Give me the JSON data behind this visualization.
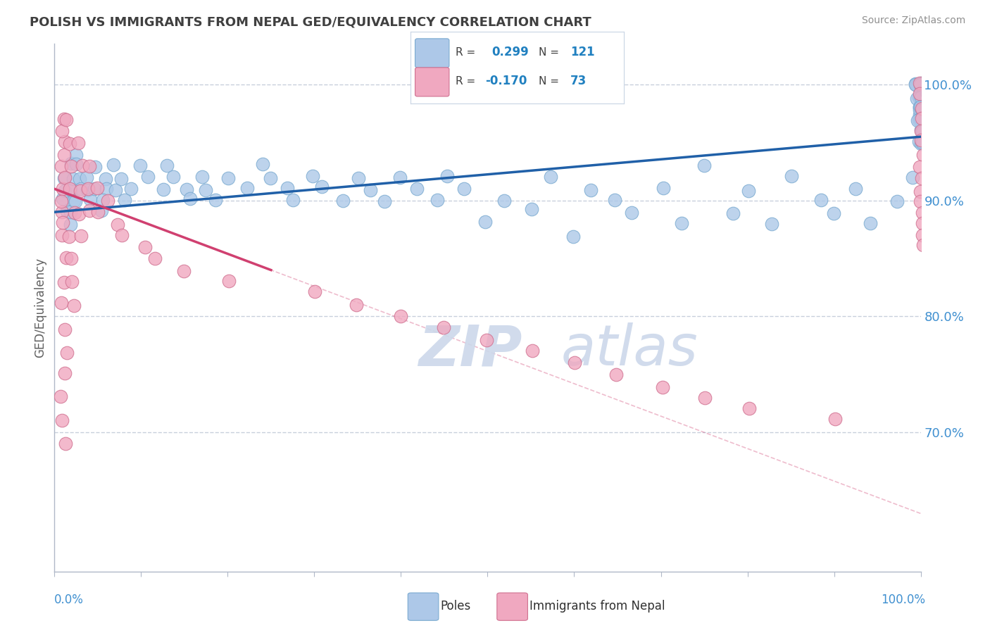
{
  "title": "POLISH VS IMMIGRANTS FROM NEPAL GED/EQUIVALENCY CORRELATION CHART",
  "source_text": "Source: ZipAtlas.com",
  "ylabel": "GED/Equivalency",
  "yticks": [
    70.0,
    80.0,
    90.0,
    100.0
  ],
  "xmin": 0.0,
  "xmax": 100.0,
  "ymin": 58.0,
  "ymax": 103.5,
  "r_blue": 0.299,
  "n_blue": 121,
  "r_pink": -0.17,
  "n_pink": 73,
  "blue_color": "#adc8e8",
  "blue_edge_color": "#7aaad0",
  "blue_line_color": "#2060a8",
  "pink_color": "#f0a8c0",
  "pink_edge_color": "#d07090",
  "pink_line_color": "#d04070",
  "watermark_color": "#ccd8ea",
  "title_color": "#404040",
  "axis_color": "#4090d0",
  "grid_color": "#c8d0dc",
  "legend_r_color": "#2080c0",
  "blue_scatter_x": [
    1,
    1,
    1,
    1,
    2,
    2,
    2,
    2,
    2,
    2,
    2,
    3,
    3,
    3,
    3,
    4,
    4,
    4,
    5,
    5,
    5,
    6,
    6,
    6,
    7,
    7,
    8,
    8,
    9,
    10,
    11,
    12,
    13,
    14,
    15,
    16,
    17,
    18,
    19,
    20,
    22,
    24,
    25,
    27,
    28,
    30,
    31,
    33,
    35,
    37,
    38,
    40,
    42,
    44,
    45,
    47,
    50,
    52,
    55,
    57,
    60,
    62,
    65,
    67,
    70,
    72,
    75,
    78,
    80,
    83,
    85,
    88,
    90,
    92,
    95,
    97,
    99,
    100,
    100,
    100,
    100,
    100,
    100,
    100,
    100,
    100,
    100,
    100,
    100,
    100,
    100,
    100,
    100,
    100,
    100,
    100,
    100,
    100,
    100,
    100,
    100,
    100,
    100,
    100,
    100,
    100,
    100,
    100,
    100,
    100,
    100,
    100,
    100,
    100,
    100,
    100,
    100,
    100,
    100,
    100,
    100
  ],
  "blue_scatter_y": [
    92,
    90,
    91,
    89,
    93,
    91,
    94,
    90,
    88,
    92,
    89,
    92,
    91,
    90,
    93,
    91,
    92,
    90,
    93,
    91,
    89,
    92,
    91,
    90,
    93,
    91,
    92,
    90,
    91,
    93,
    92,
    91,
    93,
    92,
    91,
    90,
    92,
    91,
    90,
    92,
    91,
    93,
    92,
    91,
    90,
    92,
    91,
    90,
    92,
    91,
    90,
    92,
    91,
    90,
    92,
    91,
    88,
    90,
    89,
    92,
    87,
    91,
    90,
    89,
    91,
    88,
    93,
    89,
    91,
    88,
    92,
    90,
    89,
    91,
    88,
    90,
    92,
    100,
    100,
    100,
    100,
    100,
    100,
    99,
    99,
    98,
    98,
    97,
    97,
    96,
    96,
    95,
    95,
    100,
    100,
    100,
    100,
    100,
    100,
    99,
    99,
    98,
    98,
    97,
    97,
    96,
    96,
    95,
    95,
    100,
    100,
    100,
    99,
    99,
    98,
    98,
    97,
    97,
    96,
    96,
    95
  ],
  "pink_scatter_x": [
    1,
    1,
    1,
    1,
    1,
    1,
    1,
    1,
    1,
    1,
    1,
    1,
    1,
    1,
    1,
    1,
    1,
    1,
    1,
    1,
    2,
    2,
    2,
    2,
    2,
    2,
    2,
    2,
    2,
    3,
    3,
    3,
    3,
    3,
    4,
    4,
    4,
    5,
    5,
    6,
    7,
    8,
    10,
    12,
    15,
    20,
    30,
    35,
    40,
    45,
    50,
    55,
    60,
    65,
    70,
    75,
    80,
    90,
    100,
    100,
    100,
    100,
    100,
    100,
    100,
    100,
    100,
    100,
    100,
    100,
    100,
    100,
    100
  ],
  "pink_scatter_y": [
    97,
    95,
    93,
    91,
    89,
    87,
    85,
    83,
    81,
    79,
    77,
    75,
    73,
    71,
    69,
    96,
    94,
    92,
    90,
    88,
    97,
    95,
    93,
    91,
    89,
    87,
    85,
    83,
    81,
    95,
    93,
    91,
    89,
    87,
    93,
    91,
    89,
    91,
    89,
    90,
    88,
    87,
    86,
    85,
    84,
    83,
    82,
    81,
    80,
    79,
    78,
    77,
    76,
    75,
    74,
    73,
    72,
    71,
    100,
    99,
    98,
    97,
    96,
    95,
    94,
    93,
    92,
    91,
    90,
    89,
    88,
    87,
    86
  ],
  "blue_trend_x0": 0,
  "blue_trend_x1": 100,
  "blue_trend_y0": 89.0,
  "blue_trend_y1": 95.5,
  "pink_trend_solid_x0": 0,
  "pink_trend_solid_x1": 25,
  "pink_trend_solid_y0": 91.0,
  "pink_trend_solid_y1": 84.0,
  "pink_trend_dash_x0": 0,
  "pink_trend_dash_x1": 100,
  "pink_trend_dash_y0": 91.0,
  "pink_trend_dash_y1": 63.0
}
